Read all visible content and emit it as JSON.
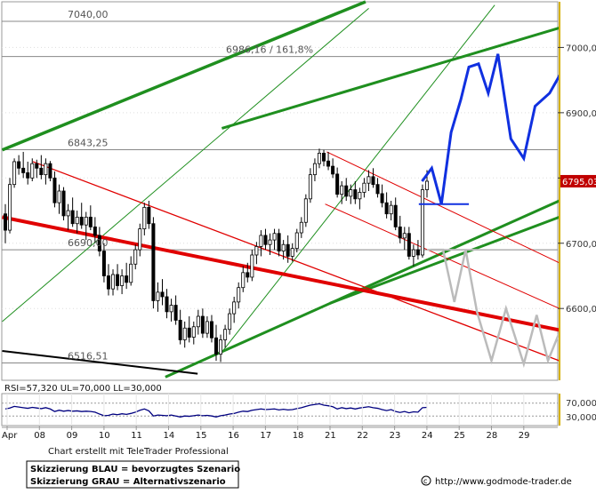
{
  "chart_data": {
    "type": "candlestick",
    "instrument_note": "",
    "y_range": [
      6490,
      7070
    ],
    "y_ticks": [
      6600,
      6700,
      6800,
      6900,
      7000
    ],
    "y_tick_labels": [
      "6600,00",
      "6700,00",
      "6800,00",
      "6900,00",
      "7000,00"
    ],
    "x_tick_labels": [
      "Apr",
      "08",
      "09",
      "10",
      "11",
      "14",
      "15",
      "16",
      "17",
      "18",
      "21",
      "22",
      "23",
      "24",
      "25",
      "28",
      "29"
    ],
    "x_tick_dates": [
      "2008-04-07",
      "2008-04-08",
      "2008-04-09",
      "2008-04-10",
      "2008-04-11",
      "2008-04-14",
      "2008-04-15",
      "2008-04-16",
      "2008-04-17",
      "2008-04-18",
      "2008-04-21",
      "2008-04-22",
      "2008-04-23",
      "2008-04-24",
      "2008-04-25",
      "2008-04-28",
      "2008-04-29"
    ],
    "levels": [
      {
        "value": 7040.0,
        "label": "7040,00"
      },
      {
        "value": 6986.16,
        "label": "6986,16 / 161,8%"
      },
      {
        "value": 6843.25,
        "label": "6843,25"
      },
      {
        "value": 6690.0,
        "label": "6690,00"
      },
      {
        "value": 6516.51,
        "label": "6516,51"
      }
    ],
    "last_price": {
      "value": 6795.03,
      "label": "6795,03"
    },
    "candles": [
      [
        6745,
        6760,
        6700,
        6720
      ],
      [
        6720,
        6800,
        6715,
        6790
      ],
      [
        6790,
        6830,
        6785,
        6825
      ],
      [
        6825,
        6835,
        6805,
        6815
      ],
      [
        6815,
        6840,
        6800,
        6808
      ],
      [
        6808,
        6825,
        6790,
        6800
      ],
      [
        6800,
        6830,
        6795,
        6822
      ],
      [
        6822,
        6828,
        6800,
        6815
      ],
      [
        6815,
        6835,
        6798,
        6805
      ],
      [
        6805,
        6830,
        6790,
        6822
      ],
      [
        6822,
        6826,
        6795,
        6800
      ],
      [
        6800,
        6810,
        6755,
        6762
      ],
      [
        6762,
        6790,
        6745,
        6780
      ],
      [
        6780,
        6786,
        6735,
        6742
      ],
      [
        6742,
        6760,
        6720,
        6750
      ],
      [
        6750,
        6770,
        6725,
        6730
      ],
      [
        6730,
        6750,
        6715,
        6740
      ],
      [
        6740,
        6762,
        6722,
        6728
      ],
      [
        6728,
        6748,
        6705,
        6740
      ],
      [
        6740,
        6758,
        6720,
        6725
      ],
      [
        6725,
        6740,
        6700,
        6712
      ],
      [
        6712,
        6725,
        6680,
        6688
      ],
      [
        6688,
        6700,
        6640,
        6650
      ],
      [
        6650,
        6668,
        6620,
        6630
      ],
      [
        6630,
        6660,
        6620,
        6652
      ],
      [
        6652,
        6668,
        6628,
        6635
      ],
      [
        6635,
        6660,
        6622,
        6650
      ],
      [
        6650,
        6670,
        6630,
        6640
      ],
      [
        6640,
        6680,
        6635,
        6668
      ],
      [
        6668,
        6698,
        6660,
        6690
      ],
      [
        6690,
        6730,
        6680,
        6722
      ],
      [
        6722,
        6762,
        6712,
        6755
      ],
      [
        6755,
        6765,
        6722,
        6730
      ],
      [
        6730,
        6740,
        6600,
        6612
      ],
      [
        6612,
        6640,
        6595,
        6625
      ],
      [
        6625,
        6645,
        6605,
        6618
      ],
      [
        6618,
        6630,
        6585,
        6595
      ],
      [
        6595,
        6615,
        6580,
        6605
      ],
      [
        6605,
        6620,
        6575,
        6582
      ],
      [
        6582,
        6598,
        6545,
        6552
      ],
      [
        6552,
        6580,
        6540,
        6570
      ],
      [
        6570,
        6588,
        6548,
        6556
      ],
      [
        6556,
        6580,
        6545,
        6572
      ],
      [
        6572,
        6598,
        6560,
        6588
      ],
      [
        6588,
        6600,
        6555,
        6562
      ],
      [
        6562,
        6588,
        6555,
        6580
      ],
      [
        6580,
        6590,
        6548,
        6555
      ],
      [
        6555,
        6575,
        6520,
        6530
      ],
      [
        6530,
        6560,
        6518,
        6552
      ],
      [
        6552,
        6575,
        6540,
        6568
      ],
      [
        6568,
        6600,
        6560,
        6592
      ],
      [
        6592,
        6618,
        6578,
        6610
      ],
      [
        6610,
        6640,
        6600,
        6632
      ],
      [
        6632,
        6665,
        6625,
        6655
      ],
      [
        6655,
        6670,
        6640,
        6648
      ],
      [
        6648,
        6690,
        6642,
        6682
      ],
      [
        6682,
        6702,
        6668,
        6695
      ],
      [
        6695,
        6720,
        6680,
        6712
      ],
      [
        6712,
        6722,
        6690,
        6698
      ],
      [
        6698,
        6715,
        6682,
        6705
      ],
      [
        6705,
        6722,
        6690,
        6715
      ],
      [
        6715,
        6722,
        6680,
        6688
      ],
      [
        6688,
        6705,
        6675,
        6698
      ],
      [
        6698,
        6712,
        6670,
        6680
      ],
      [
        6680,
        6700,
        6672,
        6692
      ],
      [
        6692,
        6722,
        6686,
        6716
      ],
      [
        6716,
        6740,
        6708,
        6732
      ],
      [
        6732,
        6775,
        6725,
        6768
      ],
      [
        6768,
        6815,
        6762,
        6805
      ],
      [
        6805,
        6830,
        6795,
        6822
      ],
      [
        6822,
        6845,
        6815,
        6838
      ],
      [
        6838,
        6843,
        6818,
        6826
      ],
      [
        6826,
        6840,
        6812,
        6818
      ],
      [
        6818,
        6830,
        6800,
        6806
      ],
      [
        6806,
        6816,
        6770,
        6775
      ],
      [
        6775,
        6795,
        6760,
        6788
      ],
      [
        6788,
        6800,
        6765,
        6772
      ],
      [
        6772,
        6790,
        6760,
        6782
      ],
      [
        6782,
        6795,
        6760,
        6768
      ],
      [
        6768,
        6785,
        6752,
        6778
      ],
      [
        6778,
        6800,
        6770,
        6792
      ],
      [
        6792,
        6812,
        6780,
        6802
      ],
      [
        6802,
        6815,
        6785,
        6790
      ],
      [
        6790,
        6800,
        6770,
        6776
      ],
      [
        6776,
        6790,
        6755,
        6762
      ],
      [
        6762,
        6778,
        6738,
        6745
      ],
      [
        6745,
        6765,
        6735,
        6758
      ],
      [
        6758,
        6770,
        6720,
        6725
      ],
      [
        6725,
        6742,
        6700,
        6708
      ],
      [
        6708,
        6725,
        6690,
        6715
      ],
      [
        6715,
        6725,
        6675,
        6680
      ],
      [
        6680,
        6698,
        6665,
        6690
      ],
      [
        6690,
        6705,
        6675,
        6682
      ],
      [
        6682,
        6790,
        6678,
        6782
      ],
      [
        6782,
        6812,
        6770,
        6795
      ]
    ],
    "rsi": {
      "label": "RSI=57,320 UL=70,000 LL=30,000",
      "value": 57.32,
      "upper": 70,
      "lower": 30,
      "tick_labels": [
        "70,000",
        "30,000"
      ],
      "series": [
        52,
        55,
        60,
        58,
        56,
        54,
        57,
        55,
        53,
        56,
        52,
        44,
        48,
        45,
        47,
        45,
        46,
        44,
        45,
        44,
        42,
        36,
        31,
        32,
        36,
        34,
        37,
        35,
        38,
        42,
        48,
        52,
        46,
        30,
        33,
        32,
        31,
        33,
        30,
        27,
        30,
        29,
        31,
        33,
        31,
        32,
        30,
        27,
        31,
        33,
        36,
        38,
        42,
        45,
        44,
        48,
        50,
        52,
        50,
        51,
        52,
        49,
        51,
        49,
        50,
        53,
        56,
        60,
        64,
        66,
        68,
        64,
        62,
        59,
        52,
        56,
        53,
        55,
        52,
        55,
        57,
        59,
        56,
        54,
        50,
        47,
        50,
        44,
        41,
        44,
        40,
        43,
        42,
        56,
        57
      ]
    },
    "scenario_blue": [
      [
        23.85,
        6795
      ],
      [
        24.15,
        6815
      ],
      [
        24.45,
        6760
      ],
      [
        24.75,
        6870
      ],
      [
        25.05,
        6920
      ],
      [
        25.3,
        6970
      ],
      [
        25.6,
        6975
      ],
      [
        25.9,
        6930
      ],
      [
        26.2,
        6990
      ],
      [
        26.6,
        6860
      ],
      [
        27.0,
        6830
      ],
      [
        27.35,
        6910
      ],
      [
        27.8,
        6930
      ],
      [
        28.2,
        6965
      ],
      [
        28.55,
        6940
      ],
      [
        28.85,
        6890
      ],
      [
        29.2,
        6955
      ],
      [
        29.6,
        6845
      ],
      [
        29.95,
        6965
      ]
    ],
    "scenario_grey": [
      [
        24.1,
        6690
      ],
      [
        24.5,
        6690
      ],
      [
        24.85,
        6610
      ],
      [
        25.2,
        6690
      ],
      [
        25.55,
        6595
      ],
      [
        26.0,
        6520
      ],
      [
        26.45,
        6600
      ],
      [
        27.0,
        6515
      ],
      [
        27.4,
        6590
      ],
      [
        27.75,
        6520
      ],
      [
        28.2,
        6575
      ],
      [
        28.6,
        6520
      ],
      [
        29.1,
        6520
      ],
      [
        29.5,
        6515
      ],
      [
        29.95,
        6515
      ]
    ],
    "attribution": "Chart erstellt mit TeleTrader Professional",
    "legend_box": [
      "Skizzierung BLAU = bevorzugtes Szenario",
      "Skizzierung GRAU = Alternativszenario"
    ],
    "source_url": "http://www.godmode-trader.de",
    "colors": {
      "candle_up": "#ffffff",
      "candle_down": "#000000",
      "resistance": "#888888",
      "trend_green": "#1f8f1f",
      "trend_red": "#e00000",
      "scenario_blue": "#1030e0",
      "scenario_grey": "#bbbbbb",
      "rsi_line": "#000080",
      "price_tag": "#c00000"
    }
  }
}
